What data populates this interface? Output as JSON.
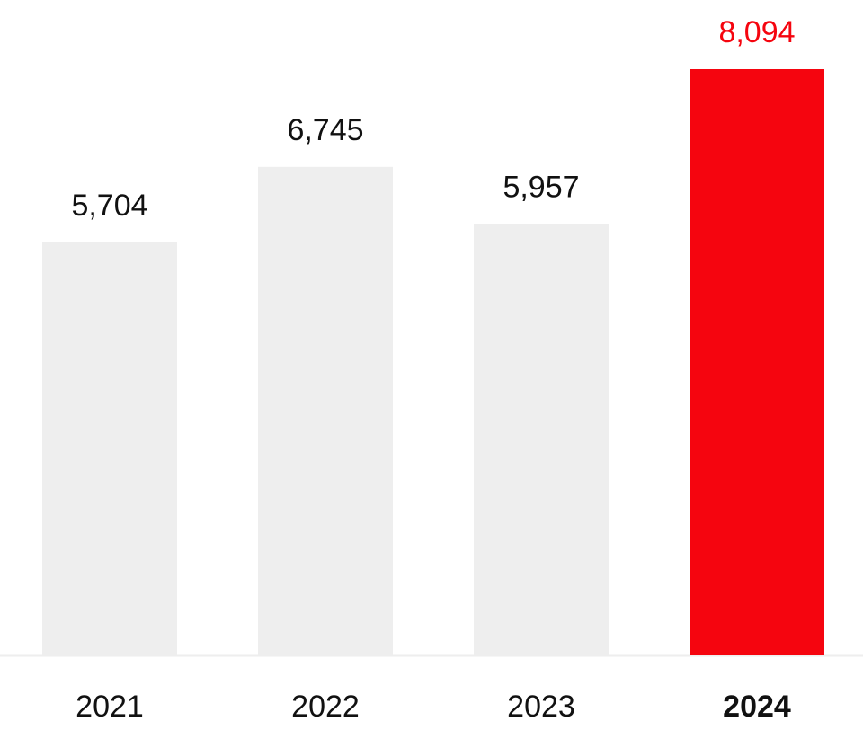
{
  "chart_data": {
    "type": "bar",
    "categories": [
      "2021",
      "2022",
      "2023",
      "2024"
    ],
    "values": [
      5704,
      6745,
      5957,
      8094
    ],
    "value_labels": [
      "5,704",
      "6,745",
      "5,957",
      "8,094"
    ],
    "highlight_index": 3,
    "ylim": [
      0,
      8094
    ],
    "grid": false,
    "legend": "none",
    "colors": {
      "bar": "#eeeeee",
      "highlight_bar": "#f5050f",
      "highlight_label": "#f5050f",
      "label": "#111111",
      "baseline": "#eeeeee"
    }
  }
}
